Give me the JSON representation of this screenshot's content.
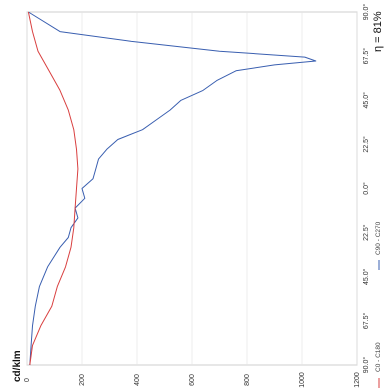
{
  "chart_data": {
    "type": "line",
    "orientation": "rotated-90",
    "ylabel": "cd/klm",
    "annotation": "η = 81%",
    "ylim": [
      0,
      1200
    ],
    "yticks": [
      {
        "value": 0,
        "label": "0"
      },
      {
        "value": 200,
        "label": "200"
      },
      {
        "value": 400,
        "label": "400"
      },
      {
        "value": 600,
        "label": "600"
      },
      {
        "value": 800,
        "label": "800"
      },
      {
        "value": 1000,
        "label": "1000"
      },
      {
        "value": 1200,
        "label": "1200"
      }
    ],
    "xlim": [
      -90,
      90
    ],
    "xticks": [
      {
        "value": -90,
        "label": "90.0°"
      },
      {
        "value": -67.5,
        "label": "67.5°"
      },
      {
        "value": -45,
        "label": "45.0°"
      },
      {
        "value": -22.5,
        "label": "22.5°"
      },
      {
        "value": 0,
        "label": "0.0°"
      },
      {
        "value": 22.5,
        "label": "22.5°"
      },
      {
        "value": 45,
        "label": "45.0°"
      },
      {
        "value": 67.5,
        "label": "67.5°"
      },
      {
        "value": 90,
        "label": "90.0°"
      }
    ],
    "legend": [
      {
        "label": "C0 - C180",
        "color": "#d94040"
      },
      {
        "label": "C90 - C270",
        "color": "#3a5fb0"
      }
    ],
    "series": [
      {
        "name": "C90 - C270",
        "color": "#3a5fb0",
        "x": [
          -90,
          -80,
          -70,
          -60,
          -50,
          -40,
          -30,
          -25,
          -20,
          -15,
          -10,
          -5,
          0,
          5,
          10,
          15,
          20,
          25,
          30,
          35,
          40,
          45,
          50,
          55,
          60,
          63,
          65,
          67,
          70,
          75,
          80,
          90
        ],
        "y": [
          10,
          15,
          20,
          30,
          45,
          75,
          120,
          150,
          160,
          185,
          175,
          210,
          200,
          240,
          250,
          260,
          290,
          330,
          420,
          470,
          520,
          560,
          640,
          690,
          760,
          900,
          1050,
          1010,
          700,
          380,
          120,
          5
        ]
      },
      {
        "name": "C0 - C180",
        "color": "#d94040",
        "x": [
          -90,
          -80,
          -70,
          -60,
          -50,
          -40,
          -30,
          -20,
          -10,
          0,
          10,
          20,
          30,
          40,
          50,
          60,
          70,
          80,
          90
        ],
        "y": [
          10,
          20,
          50,
          90,
          110,
          140,
          160,
          170,
          175,
          180,
          185,
          180,
          170,
          150,
          120,
          80,
          40,
          20,
          5
        ]
      }
    ]
  }
}
